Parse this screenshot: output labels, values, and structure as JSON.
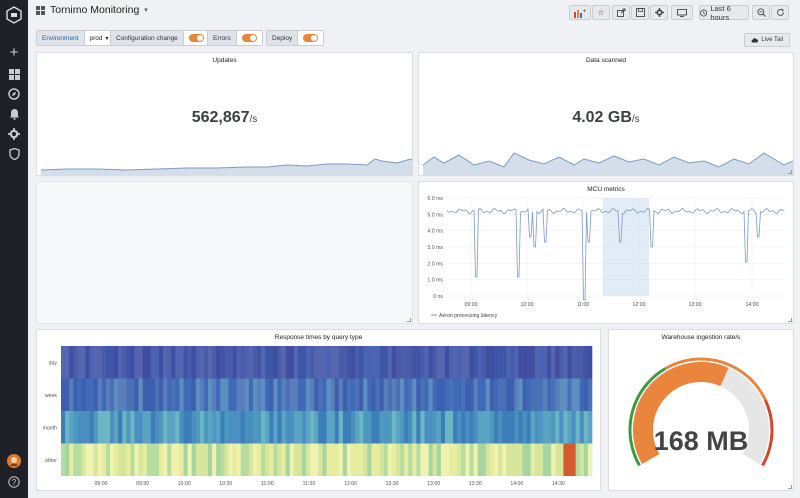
{
  "dashboard": {
    "title": "Tornimo Monitoring"
  },
  "toolbar": {
    "time_range_label": "Last 6 hours"
  },
  "variables": {
    "environment_label": "Environment",
    "environment_value": "prod",
    "config_change_label": "Configuration change",
    "errors_label": "Errors",
    "deploy_label": "Deploy"
  },
  "live_tail_label": "Live Tail",
  "panels": {
    "updates": {
      "title": "Updates",
      "value": "562,867",
      "unit": "/s"
    },
    "data_scanned": {
      "title": "Data scanned",
      "value": "4.02 GB",
      "unit": "/s"
    },
    "mcu": {
      "title": "MCU metrics",
      "legend": "Aeron processing latency",
      "y_ticks": [
        "6.0 ms",
        "5.0 ms",
        "4.0 ms",
        "3.0 ms",
        "2.0 ms",
        "1.0 ms",
        "0 ns"
      ],
      "x_ticks": [
        "09:00",
        "10:00",
        "11:00",
        "12:00",
        "13:00",
        "14:00"
      ]
    },
    "response": {
      "title": "Response times by query type",
      "rows": [
        "day",
        "week",
        "month",
        "other"
      ],
      "x_ticks": [
        "09:00",
        "09:30",
        "10:00",
        "10:30",
        "11:00",
        "11:30",
        "12:00",
        "12:30",
        "13:00",
        "13:30",
        "14:00",
        "14:30"
      ]
    },
    "warehouse": {
      "title": "Warehouse ingestion rate/s",
      "value": "168 MB",
      "gauge_fraction": 0.6
    }
  },
  "colors": {
    "accent_orange": "#e9853c",
    "series_blue": "#7e9ac0",
    "gauge_green": "#3b9a42",
    "gauge_red": "#d2462c"
  }
}
